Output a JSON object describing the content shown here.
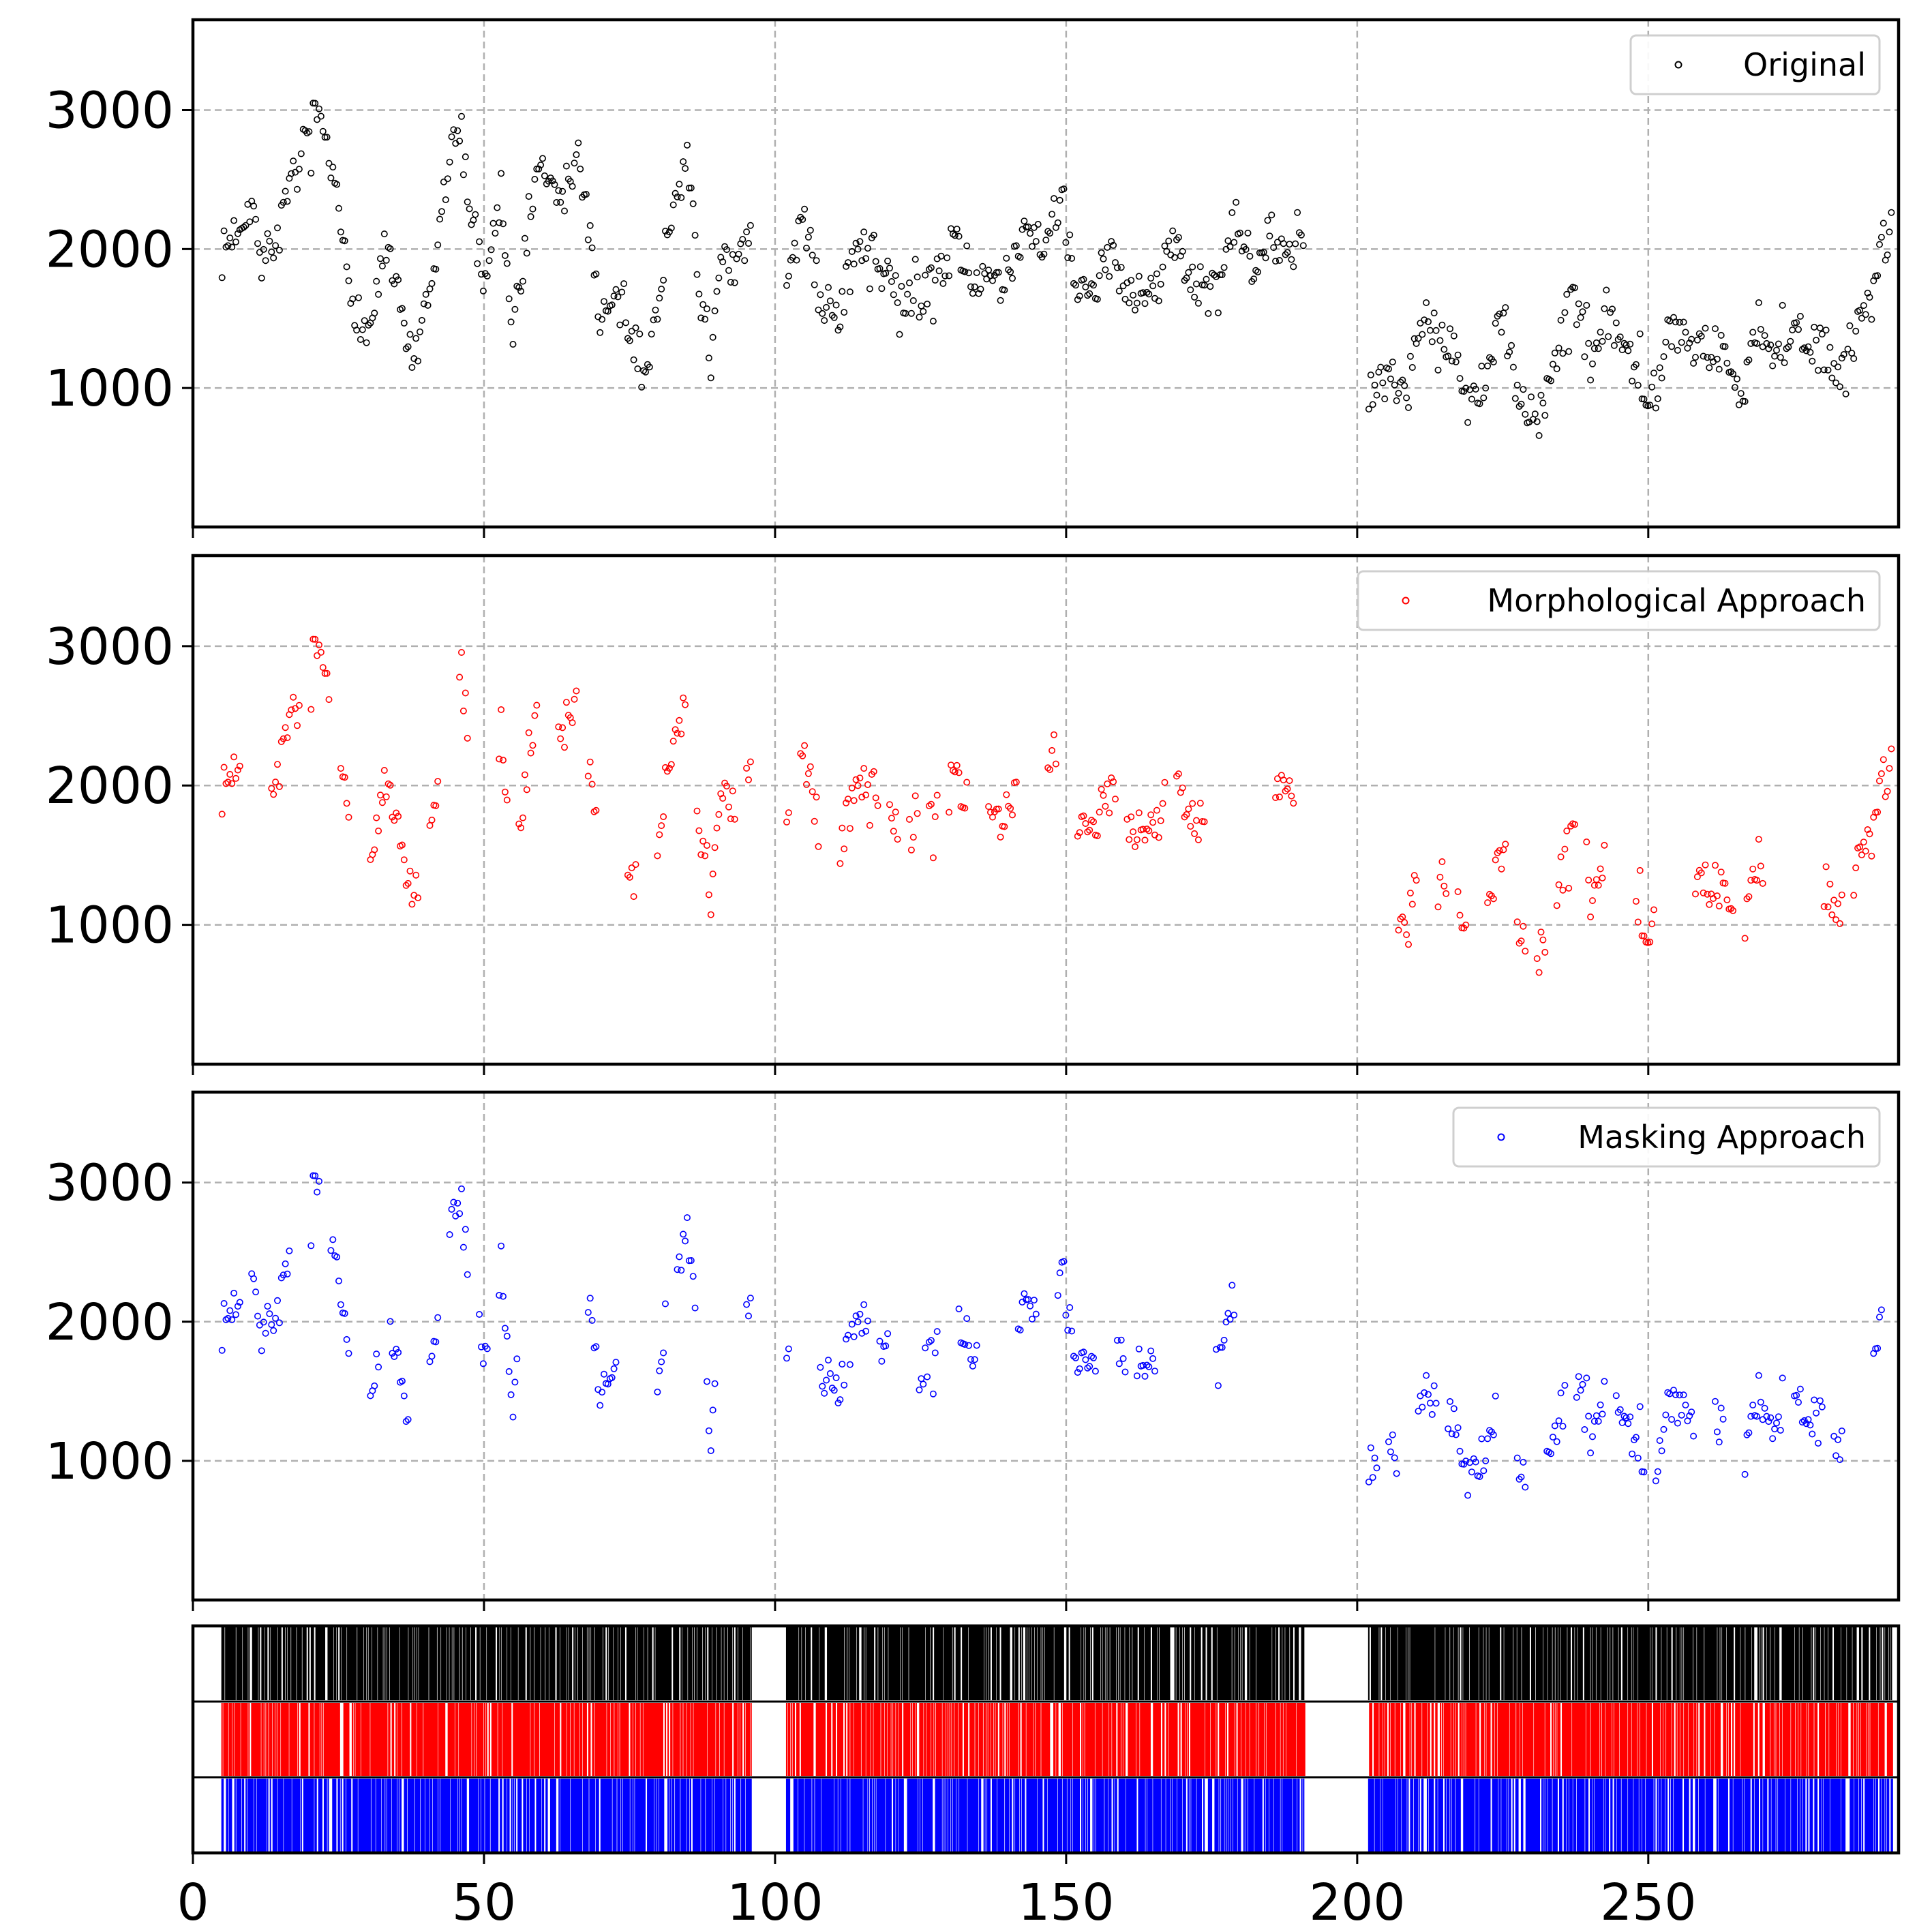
{
  "chart_data": [
    {
      "type": "scatter",
      "xlim": [
        0,
        293
      ],
      "ylim": [
        0,
        3650
      ],
      "yticks": [
        1000,
        2000,
        3000
      ],
      "grid": true,
      "legend_placement": "top-right",
      "series": [
        {
          "name": "Original",
          "color": "#000000",
          "marker": "open-circle",
          "x": [],
          "y": []
        }
      ]
    },
    {
      "type": "scatter",
      "xlim": [
        0,
        293
      ],
      "ylim": [
        0,
        3650
      ],
      "yticks": [
        1000,
        2000,
        3000
      ],
      "grid": true,
      "legend_placement": "top-right",
      "series": [
        {
          "name": "Morphological Approach",
          "color": "#ff0000",
          "marker": "open-circle",
          "x": [],
          "y": []
        }
      ]
    },
    {
      "type": "scatter",
      "xlim": [
        0,
        293
      ],
      "ylim": [
        0,
        3650
      ],
      "yticks": [
        1000,
        2000,
        3000
      ],
      "grid": true,
      "legend_placement": "top-right",
      "series": [
        {
          "name": "Masking Approach",
          "color": "#0000ff",
          "marker": "open-circle",
          "x": [],
          "y": []
        }
      ]
    },
    {
      "type": "event-raster",
      "xlim": [
        0,
        293
      ],
      "xticks": [
        0,
        50,
        100,
        150,
        200,
        250
      ],
      "rows": [
        {
          "color": "#000000",
          "segments": [
            [
              5,
              96
            ],
            [
              102,
              191
            ],
            [
              202,
              292
            ]
          ]
        },
        {
          "color": "#ff0000",
          "segments": [
            [
              5,
              96
            ],
            [
              102,
              191
            ],
            [
              202,
              292
            ]
          ]
        },
        {
          "color": "#0000ff",
          "segments": [
            [
              5,
              96
            ],
            [
              102,
              191
            ],
            [
              202,
              292
            ]
          ]
        }
      ]
    }
  ]
}
